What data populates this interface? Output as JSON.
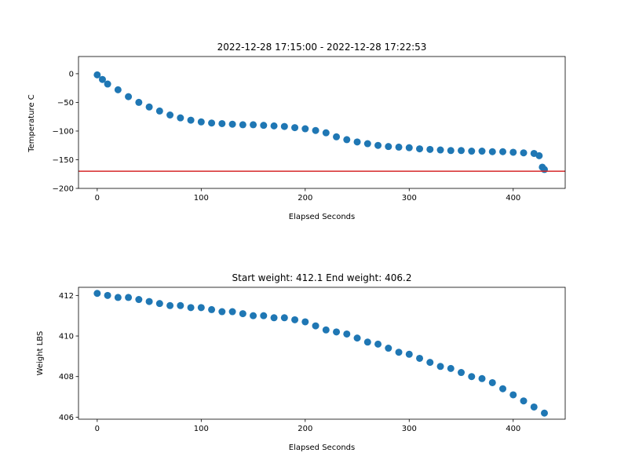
{
  "chart_data": [
    {
      "type": "scatter",
      "title": "2022-12-28 17:15:00 - 2022-12-28 17:22:53",
      "xlabel": "Elapsed Seconds",
      "ylabel": "Temperature C",
      "xlim": [
        -18,
        450
      ],
      "ylim": [
        -200,
        30
      ],
      "xticks": [
        0,
        100,
        200,
        300,
        400
      ],
      "yticks": [
        0,
        -50,
        -100,
        -150,
        -200
      ],
      "ytick_labels": [
        "0",
        "−50",
        "−100",
        "−150",
        "−200"
      ],
      "marker_color": "#1f77b4",
      "reference_line": {
        "y": -170,
        "color": "#d62728"
      },
      "grid": false,
      "series": [
        {
          "x": [
            0,
            5,
            10,
            20,
            30,
            40,
            50,
            60,
            70,
            80,
            90,
            100,
            110,
            120,
            130,
            140,
            150,
            160,
            170,
            180,
            190,
            200,
            210,
            220,
            230,
            240,
            250,
            260,
            270,
            280,
            290,
            300,
            310,
            320,
            330,
            340,
            350,
            360,
            370,
            380,
            390,
            400,
            410,
            420,
            425,
            428,
            430
          ],
          "y": [
            -2,
            -10,
            -18,
            -28,
            -40,
            -50,
            -58,
            -65,
            -72,
            -77,
            -81,
            -84,
            -86,
            -87,
            -88,
            -89,
            -89,
            -90,
            -91,
            -92,
            -94,
            -96,
            -99,
            -103,
            -110,
            -115,
            -119,
            -122,
            -125,
            -127,
            -128,
            -129,
            -131,
            -132,
            -133,
            -134,
            -134,
            -135,
            -135,
            -136,
            -136,
            -137,
            -138,
            -139,
            -143,
            -163,
            -167
          ]
        }
      ]
    },
    {
      "type": "scatter",
      "title": "Start weight: 412.1 End weight: 406.2",
      "xlabel": "Elapsed Seconds",
      "ylabel": "Weight LBS",
      "xlim": [
        -18,
        450
      ],
      "ylim": [
        405.9,
        412.4
      ],
      "xticks": [
        0,
        100,
        200,
        300,
        400
      ],
      "yticks": [
        412,
        410,
        408,
        406
      ],
      "ytick_labels": [
        "412",
        "410",
        "408",
        "406"
      ],
      "marker_color": "#1f77b4",
      "grid": false,
      "series": [
        {
          "x": [
            0,
            10,
            20,
            30,
            40,
            50,
            60,
            70,
            80,
            90,
            100,
            110,
            120,
            130,
            140,
            150,
            160,
            170,
            180,
            190,
            200,
            210,
            220,
            230,
            240,
            250,
            260,
            270,
            280,
            290,
            300,
            310,
            320,
            330,
            340,
            350,
            360,
            370,
            380,
            390,
            400,
            410,
            420,
            430
          ],
          "y": [
            412.1,
            412.0,
            411.9,
            411.9,
            411.8,
            411.7,
            411.6,
            411.5,
            411.5,
            411.4,
            411.4,
            411.3,
            411.2,
            411.2,
            411.1,
            411.0,
            411.0,
            410.9,
            410.9,
            410.8,
            410.7,
            410.5,
            410.3,
            410.2,
            410.1,
            409.9,
            409.7,
            409.6,
            409.4,
            409.2,
            409.1,
            408.9,
            408.7,
            408.5,
            408.4,
            408.2,
            408.0,
            407.9,
            407.7,
            407.4,
            407.1,
            406.8,
            406.5,
            406.2
          ]
        }
      ]
    }
  ]
}
